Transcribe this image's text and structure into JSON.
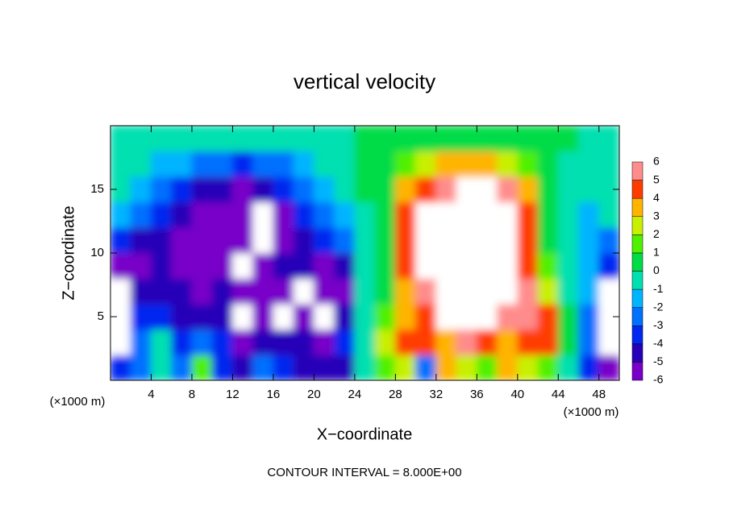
{
  "chart_data": {
    "type": "contour",
    "title": "vertical velocity",
    "xlabel": "X−coordinate",
    "ylabel": "Z−coordinate",
    "x_unit": "(×1000 m)",
    "y_unit": "(×1000 m)",
    "note": "CONTOUR INTERVAL = 8.000E+00",
    "xlim": [
      0,
      50
    ],
    "ylim": [
      0,
      20
    ],
    "xticks": [
      4,
      8,
      12,
      16,
      20,
      24,
      28,
      32,
      36,
      40,
      44,
      48
    ],
    "yticks": [
      5,
      10,
      15
    ],
    "x": [
      1,
      3,
      5,
      7,
      9,
      11,
      13,
      15,
      17,
      19,
      21,
      23,
      25,
      27,
      29,
      31,
      33,
      35,
      37,
      39,
      41,
      43,
      45,
      47,
      49
    ],
    "y": [
      1,
      3,
      5,
      7,
      9,
      11,
      13,
      15,
      17,
      19
    ],
    "z": [
      [
        -3,
        -2,
        0,
        -2,
        2,
        -3,
        -4,
        -2,
        -3,
        -4,
        -4,
        -4,
        0,
        2,
        3,
        -2,
        4,
        3,
        2,
        4,
        3,
        2,
        0,
        -3,
        -6
      ],
      [
        7,
        -2,
        0,
        -3,
        -2,
        -3,
        -5,
        -4,
        -4,
        -4,
        -5,
        -3,
        0,
        3,
        5,
        5,
        4,
        6,
        5,
        4,
        5,
        5,
        1,
        -2,
        7
      ],
      [
        7,
        -3,
        -3.5,
        -4,
        -4,
        -4,
        -7,
        -5,
        -7,
        -6,
        -7,
        -4,
        0,
        2,
        4,
        5,
        7,
        7,
        7,
        6,
        6,
        5,
        1,
        -2,
        7
      ],
      [
        7,
        -4,
        -4,
        -4.5,
        -5,
        -4,
        -6,
        -5,
        -6,
        -7,
        -5,
        -6,
        0,
        1,
        4,
        6,
        7,
        7,
        7,
        7,
        6,
        3,
        0,
        -1,
        7
      ],
      [
        -5,
        -5,
        -4.5,
        -5,
        -5,
        -5.5,
        -6.5,
        -6,
        -4,
        -4,
        -5,
        -4,
        0,
        1,
        5,
        7,
        7,
        7,
        7,
        7,
        5,
        2,
        0,
        -1,
        -3
      ],
      [
        -3,
        -4,
        -4.5,
        -5,
        -5,
        -5,
        -6,
        -7,
        -5.5,
        -4,
        -3,
        -2,
        0,
        1,
        5,
        7,
        7,
        7,
        7,
        7,
        5,
        1,
        0,
        -1,
        -2
      ],
      [
        -1,
        -2,
        -3,
        -4,
        -5,
        -5,
        -5.5,
        -7,
        -5,
        -3,
        -2,
        -1,
        0,
        1,
        5,
        7,
        7,
        7,
        7,
        7,
        5,
        1,
        0,
        -1,
        0
      ],
      [
        0,
        -1,
        -2,
        -3,
        -4,
        -4,
        -5,
        -4.5,
        -3,
        -2,
        -1,
        0,
        0.5,
        1,
        4,
        5,
        6,
        7,
        7,
        6,
        4,
        1,
        0,
        0,
        0
      ],
      [
        0,
        0,
        -1,
        -1.5,
        -2,
        -2,
        -3,
        -2.5,
        -2,
        -1,
        -0.5,
        0,
        0.5,
        1,
        1.5,
        2.5,
        3.5,
        3.5,
        3.5,
        3,
        1.5,
        0.5,
        0,
        0,
        0
      ],
      [
        0,
        0,
        0,
        0,
        0,
        0,
        0,
        0,
        0,
        0,
        0,
        0,
        0.5,
        0.5,
        0.5,
        1,
        1,
        1,
        1,
        1,
        1,
        0.5,
        0.5,
        0,
        0
      ]
    ],
    "colorbar": {
      "ticks": [
        -6,
        -5,
        -4,
        -3,
        -2,
        -1,
        0,
        1,
        2,
        3,
        4,
        5,
        6
      ],
      "colors": [
        "#7800c8",
        "#2800b8",
        "#0028f0",
        "#0070ff",
        "#00b4ff",
        "#00e0b0",
        "#00dc46",
        "#50f000",
        "#c8f000",
        "#ffb400",
        "#ff3c00",
        "#ff8c8c"
      ]
    },
    "outside_color": "#ffffff"
  }
}
